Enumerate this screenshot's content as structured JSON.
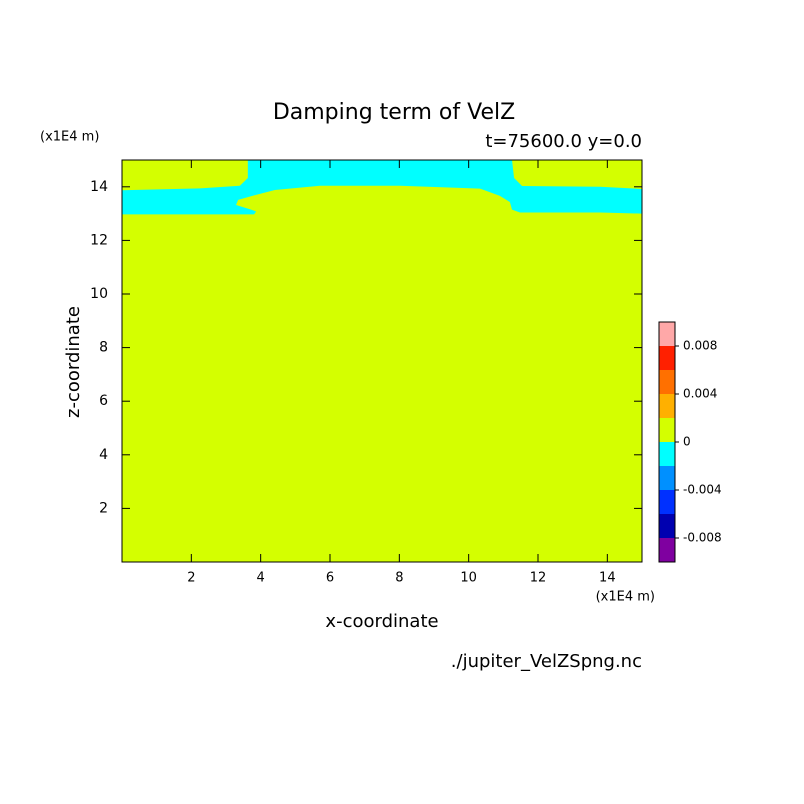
{
  "chart_data": {
    "type": "contour",
    "title": "Damping term of VelZ",
    "subtitle": "t=75600.0 y=0.0",
    "x_label": "x-coordinate",
    "y_label": "z-coordinate",
    "x_unit": "(x1E4 m)",
    "y_unit": "(x1E4 m)",
    "source": "./jupiter_VelZSpng.nc",
    "xlim": [
      0,
      15
    ],
    "ylim": [
      0,
      15
    ],
    "xticks": [
      2,
      4,
      6,
      8,
      10,
      12,
      14
    ],
    "yticks": [
      2,
      4,
      6,
      8,
      10,
      12,
      14
    ],
    "background_color": "#d4ff00",
    "regions": [
      {
        "color": "#00ffff",
        "x": [
          3.63,
          11.25,
          11.31,
          11.54,
          13.79,
          15,
          15,
          13.79,
          11.48,
          11.25,
          11.19,
          10.9,
          10.33,
          8.02,
          5.71,
          4.41,
          3.84,
          3.35,
          3.29,
          3.69,
          3.87,
          3.81,
          3.4,
          0,
          0,
          2.25,
          3.4,
          3.63
        ],
        "z": [
          15,
          15,
          14.33,
          14.03,
          14,
          13.92,
          13,
          13.04,
          13.04,
          13.15,
          13.43,
          13.66,
          13.93,
          14.04,
          14.04,
          13.88,
          13.69,
          13.51,
          13.32,
          13.16,
          13.08,
          12.97,
          12.97,
          12.97,
          13.87,
          13.94,
          14.04,
          14.33
        ]
      }
    ],
    "colorbar": {
      "levels": [
        -0.01,
        -0.008,
        -0.006,
        -0.004,
        -0.002,
        0,
        0.002,
        0.004,
        0.006,
        0.008,
        0.01
      ],
      "colors": [
        "#7f00a0",
        "#0000b0",
        "#0030ff",
        "#0090ff",
        "#00ffff",
        "#d4ff00",
        "#ffb000",
        "#ff7000",
        "#ff2000",
        "#ffa8a8"
      ],
      "ticks": [
        -0.008,
        -0.004,
        0,
        0.004,
        0.008
      ]
    }
  }
}
